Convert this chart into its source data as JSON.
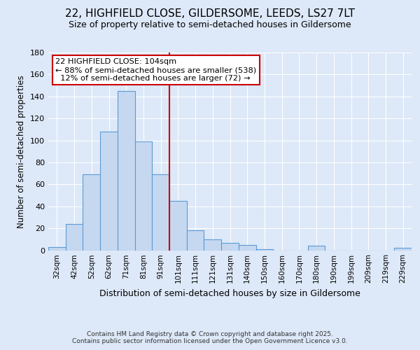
{
  "title_line1": "22, HIGHFIELD CLOSE, GILDERSOME, LEEDS, LS27 7LT",
  "title_line2": "Size of property relative to semi-detached houses in Gildersome",
  "xlabel": "Distribution of semi-detached houses by size in Gildersome",
  "ylabel": "Number of semi-detached properties",
  "categories": [
    "32sqm",
    "42sqm",
    "52sqm",
    "62sqm",
    "71sqm",
    "81sqm",
    "91sqm",
    "101sqm",
    "111sqm",
    "121sqm",
    "131sqm",
    "140sqm",
    "150sqm",
    "160sqm",
    "170sqm",
    "180sqm",
    "190sqm",
    "199sqm",
    "209sqm",
    "219sqm",
    "229sqm"
  ],
  "bar_values": [
    3,
    24,
    69,
    108,
    145,
    99,
    69,
    45,
    18,
    10,
    7,
    5,
    1,
    0,
    0,
    4,
    0,
    0,
    0,
    0,
    2
  ],
  "bar_color": "#c5d8f0",
  "bar_edge_color": "#5b9bd5",
  "vline_color": "#cc0000",
  "annotation_title": "22 HIGHFIELD CLOSE: 104sqm",
  "annotation_line2": "← 88% of semi-detached houses are smaller (538)",
  "annotation_line3": "  12% of semi-detached houses are larger (72) →",
  "annotation_box_color": "#ffffff",
  "annotation_box_edge": "#cc0000",
  "ylim": [
    0,
    180
  ],
  "yticks": [
    0,
    20,
    40,
    60,
    80,
    100,
    120,
    140,
    160,
    180
  ],
  "background_color": "#dde8f8",
  "grid_color": "#ffffff",
  "footer_line1": "Contains HM Land Registry data © Crown copyright and database right 2025.",
  "footer_line2": "Contains public sector information licensed under the Open Government Licence v3.0."
}
